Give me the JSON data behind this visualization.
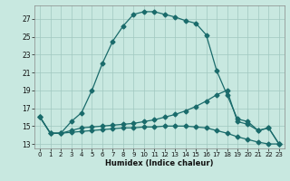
{
  "xlabel": "Humidex (Indice chaleur)",
  "xlim": [
    -0.5,
    23.5
  ],
  "ylim": [
    12.5,
    28.5
  ],
  "yticks": [
    13,
    15,
    17,
    19,
    21,
    23,
    25,
    27
  ],
  "xticks": [
    0,
    1,
    2,
    3,
    4,
    5,
    6,
    7,
    8,
    9,
    10,
    11,
    12,
    13,
    14,
    15,
    16,
    17,
    18,
    19,
    20,
    21,
    22,
    23
  ],
  "bg_color": "#c8e8e0",
  "grid_color": "#a0c8c0",
  "line_color": "#1a6b6b",
  "series1_x": [
    0,
    1,
    2,
    3,
    4,
    5,
    6,
    7,
    8,
    9,
    10,
    11,
    12,
    13,
    14,
    15,
    16,
    17,
    18,
    19,
    20,
    21,
    22,
    23
  ],
  "series1_y": [
    16.0,
    14.2,
    14.2,
    15.5,
    16.5,
    19.0,
    22.0,
    24.5,
    26.2,
    27.5,
    27.8,
    27.8,
    27.5,
    27.2,
    26.8,
    26.5,
    25.2,
    21.2,
    18.5,
    15.8,
    15.5,
    14.5,
    14.8,
    13.0
  ],
  "series2_x": [
    0,
    1,
    2,
    3,
    4,
    5,
    6,
    7,
    8,
    9,
    10,
    11,
    12,
    13,
    14,
    15,
    16,
    17,
    18,
    19,
    20,
    21,
    22,
    23
  ],
  "series2_y": [
    16.0,
    14.2,
    14.2,
    14.5,
    14.8,
    14.9,
    15.0,
    15.1,
    15.2,
    15.3,
    15.5,
    15.7,
    16.0,
    16.3,
    16.7,
    17.2,
    17.8,
    18.5,
    19.0,
    15.5,
    15.2,
    14.5,
    14.8,
    13.0
  ],
  "series3_x": [
    0,
    1,
    2,
    3,
    4,
    5,
    6,
    7,
    8,
    9,
    10,
    11,
    12,
    13,
    14,
    15,
    16,
    17,
    18,
    19,
    20,
    21,
    22,
    23
  ],
  "series3_y": [
    16.0,
    14.2,
    14.2,
    14.3,
    14.4,
    14.5,
    14.6,
    14.7,
    14.8,
    14.8,
    14.9,
    14.9,
    15.0,
    15.0,
    15.0,
    14.9,
    14.8,
    14.5,
    14.2,
    13.8,
    13.5,
    13.2,
    13.0,
    13.0
  ],
  "marker": "D",
  "markersize": 2.5,
  "linewidth": 0.9
}
